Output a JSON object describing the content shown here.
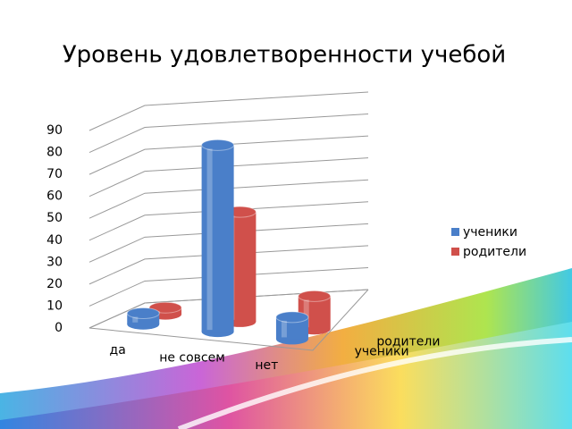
{
  "chart_data": {
    "type": "bar3d",
    "title": "Уровень удовлетворенности учебой",
    "categories": [
      "да",
      "не совсем",
      "нет"
    ],
    "series": [
      {
        "name": "ученики",
        "color": "#4a7fc9",
        "values": [
          5,
          85,
          10
        ]
      },
      {
        "name": "родители",
        "color": "#d0504b",
        "values": [
          3,
          50,
          15
        ]
      }
    ],
    "ylim": [
      0,
      90
    ],
    "yticks": [
      0,
      10,
      20,
      30,
      40,
      50,
      60,
      70,
      80,
      90
    ],
    "grid": true,
    "legend": "right"
  }
}
